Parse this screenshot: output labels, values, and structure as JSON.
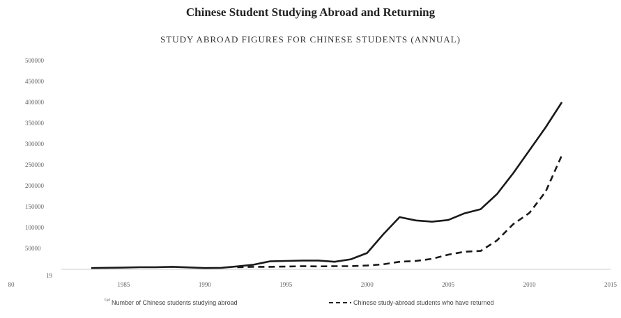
{
  "chart_data": {
    "type": "line",
    "title": "Chinese Student Studying Abroad and Returning",
    "subtitle": "STUDY ABROAD FIGURES FOR CHINESE STUDENTS (ANNUAL)",
    "xlabel": "",
    "ylabel": "",
    "xlim": [
      1980,
      2015
    ],
    "ylim": [
      0,
      500000
    ],
    "x_ticks": [
      "80",
      "1985",
      "1990",
      "1995",
      "2000",
      "2005",
      "2010",
      "2015"
    ],
    "y_ticks": [
      "500000",
      "450000",
      "400000",
      "350000",
      "300000",
      "250000",
      "200000",
      "150000",
      "100000",
      "50000"
    ],
    "zero_label": "19",
    "grid": false,
    "legend_position": "bottom",
    "series": [
      {
        "name": "Number of Chinese students studying abroad",
        "style": "solid",
        "color": "#1a1a1a",
        "points": [
          [
            1983,
            3000
          ],
          [
            1985,
            4000
          ],
          [
            1986,
            5000
          ],
          [
            1987,
            5000
          ],
          [
            1988,
            6000
          ],
          [
            1989,
            4500
          ],
          [
            1990,
            3000
          ],
          [
            1991,
            3500
          ],
          [
            1992,
            7000
          ],
          [
            1993,
            11000
          ],
          [
            1994,
            19000
          ],
          [
            1995,
            20000
          ],
          [
            1996,
            21000
          ],
          [
            1997,
            21000
          ],
          [
            1998,
            18000
          ],
          [
            1999,
            24000
          ],
          [
            2000,
            39000
          ],
          [
            2001,
            84000
          ],
          [
            2002,
            125000
          ],
          [
            2003,
            117000
          ],
          [
            2004,
            114000
          ],
          [
            2005,
            118000
          ],
          [
            2006,
            134000
          ],
          [
            2007,
            144000
          ],
          [
            2008,
            180000
          ],
          [
            2009,
            230000
          ],
          [
            2010,
            285000
          ],
          [
            2011,
            340000
          ],
          [
            2012,
            400000
          ]
        ]
      },
      {
        "name": "Chinese study-abroad students who have returned",
        "style": "dashed",
        "color": "#1a1a1a",
        "points": [
          [
            1992,
            5000
          ],
          [
            1993,
            6000
          ],
          [
            1994,
            6000
          ],
          [
            1995,
            6500
          ],
          [
            1996,
            7500
          ],
          [
            1997,
            7000
          ],
          [
            1998,
            7500
          ],
          [
            1999,
            7500
          ],
          [
            2000,
            9000
          ],
          [
            2001,
            12000
          ],
          [
            2002,
            18000
          ],
          [
            2003,
            20000
          ],
          [
            2004,
            25000
          ],
          [
            2005,
            35000
          ],
          [
            2006,
            42000
          ],
          [
            2007,
            44000
          ],
          [
            2008,
            69000
          ],
          [
            2009,
            108000
          ],
          [
            2010,
            135000
          ],
          [
            2011,
            186000
          ],
          [
            2012,
            273000
          ]
        ]
      }
    ],
    "legend_labels": [
      "Number of Chinese students studying abroad",
      "Chinese study-abroad students who have returned"
    ]
  }
}
